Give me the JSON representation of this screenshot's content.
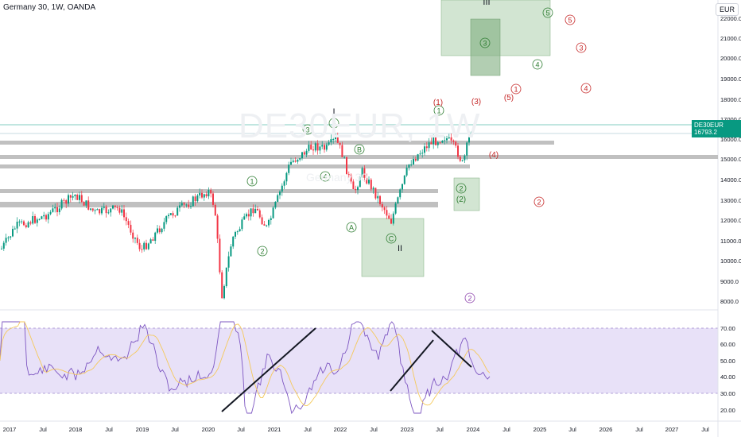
{
  "header": {
    "symbol_line": "Germany 30, 1W, OANDA",
    "currency": "EUR",
    "watermark": "DE30EUR, 1W",
    "watermark_sub": "Germany 30"
  },
  "price_axis": {
    "ticks": [
      "22000.0",
      "21000.0",
      "20000.0",
      "19000.0",
      "18000.0",
      "17000.0",
      "16000.0",
      "15000.0",
      "14000.0",
      "13000.0",
      "12000.0",
      "11000.0",
      "10000.0",
      "9000.0",
      "8000.0"
    ],
    "current_label": "DE30EUR",
    "current_value": "16793.2"
  },
  "rsi_axis": {
    "ticks": [
      "70.00",
      "60.00",
      "50.00",
      "40.00",
      "30.00",
      "20.00"
    ]
  },
  "time_axis": {
    "labels": [
      "2017",
      "Jul",
      "2018",
      "Jul",
      "2019",
      "Jul",
      "2020",
      "Jul",
      "2021",
      "Jul",
      "2022",
      "Jul",
      "2023",
      "Jul",
      "2024",
      "Jul",
      "2025",
      "Jul",
      "2026",
      "Jul",
      "2027",
      "Jul"
    ]
  },
  "waves": {
    "green_labels": [
      "1",
      "2",
      "3",
      "4",
      "5",
      "I",
      "A",
      "B",
      "C",
      "II",
      "1",
      "2",
      "(2)",
      "3",
      "4",
      "5",
      "III"
    ],
    "red_labels": [
      "(1)",
      "(3)",
      "(5)",
      "1",
      "(4)",
      "2",
      "3",
      "4",
      "5"
    ],
    "purple_label": "2"
  },
  "colors": {
    "up": "#089981",
    "down": "#f23645",
    "rsi_line": "#7e57c2",
    "rsi_ma": "#f5c95b",
    "rsi_band": "#e4dcf7",
    "zone": "#9bc59b",
    "sr_line": "#b8b8b8",
    "wave_green": "#2e7d32",
    "wave_red": "#c62828"
  }
}
